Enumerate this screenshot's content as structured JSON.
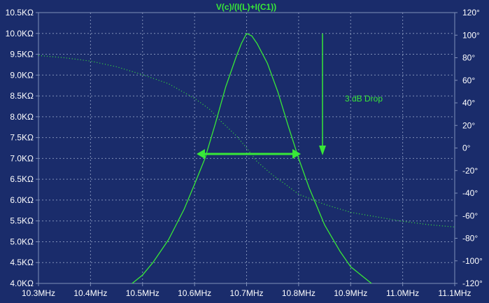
{
  "chart_data": {
    "type": "line",
    "title": "V(c)/(I(L)+I(C1))",
    "x_ticks": [
      "10.3MHz",
      "10.4MHz",
      "10.5MHz",
      "10.6MHz",
      "10.7MHz",
      "10.8MHz",
      "10.9MHz",
      "11.0MHz",
      "11.1MHz"
    ],
    "xlim_mhz": [
      10.3,
      11.1
    ],
    "y_left_ticks": [
      "10.5KΩ",
      "10.0KΩ",
      "9.5KΩ",
      "9.0KΩ",
      "8.5KΩ",
      "8.0KΩ",
      "7.5KΩ",
      "7.0KΩ",
      "6.5KΩ",
      "6.0KΩ",
      "5.5KΩ",
      "5.0KΩ",
      "4.5KΩ",
      "4.0KΩ"
    ],
    "ylim_left_kohm": [
      4.0,
      10.5
    ],
    "y_right_ticks": [
      "120°",
      "100°",
      "80°",
      "60°",
      "40°",
      "20°",
      "0°",
      "-20°",
      "-40°",
      "-60°",
      "-80°",
      "-100°",
      "-120°"
    ],
    "ylim_right_deg": [
      -120,
      120
    ],
    "grid": true,
    "annotation": "3 dB Drop",
    "series": [
      {
        "role": "magnitude",
        "axis": "left",
        "color": "#38e838",
        "style": "solid",
        "x": [
          10.48,
          10.5,
          10.52,
          10.55,
          10.58,
          10.6,
          10.62,
          10.64,
          10.66,
          10.68,
          10.69,
          10.7,
          10.71,
          10.72,
          10.74,
          10.76,
          10.78,
          10.8,
          10.82,
          10.85,
          10.88,
          10.9,
          10.92,
          10.94
        ],
        "y": [
          4.0,
          4.2,
          4.5,
          5.05,
          5.78,
          6.38,
          7.0,
          7.84,
          8.72,
          9.44,
          9.76,
          10.0,
          9.94,
          9.76,
          9.28,
          8.6,
          7.78,
          7.0,
          6.3,
          5.4,
          4.76,
          4.4,
          4.2,
          4.0
        ]
      },
      {
        "role": "phase",
        "axis": "right",
        "color": "#38e838",
        "style": "dotted",
        "x": [
          10.3,
          10.35,
          10.4,
          10.45,
          10.5,
          10.55,
          10.6,
          10.63,
          10.65,
          10.68,
          10.7,
          10.72,
          10.75,
          10.78,
          10.8,
          10.85,
          10.9,
          10.95,
          11.0,
          11.05,
          11.1
        ],
        "y": [
          82,
          80,
          77,
          72,
          65,
          57,
          44,
          34,
          24,
          11,
          0,
          -12,
          -24,
          -34,
          -41,
          -50,
          -57,
          -61,
          -65,
          -68,
          -70
        ]
      }
    ]
  }
}
